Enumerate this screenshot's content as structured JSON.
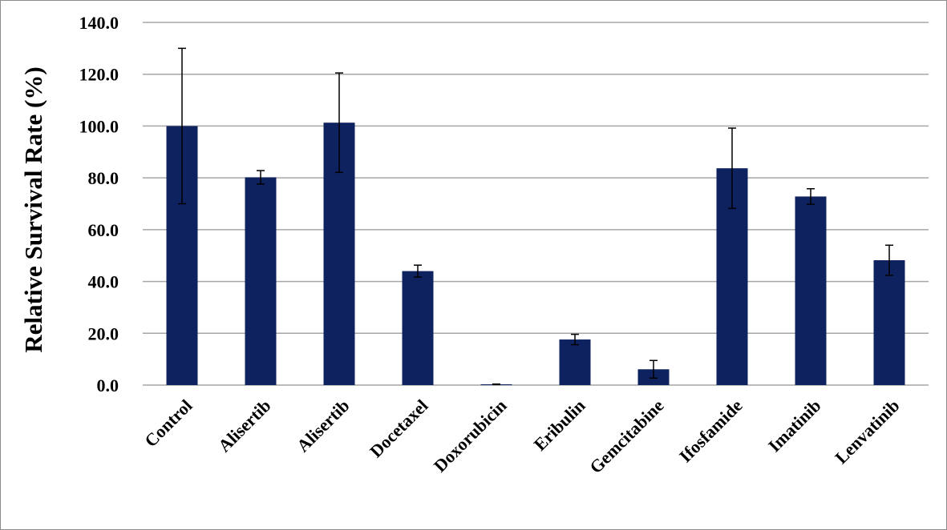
{
  "chart_data": {
    "type": "bar",
    "title": "",
    "xlabel": "",
    "ylabel": "Relative Survival Rate (%)",
    "ylim": [
      0,
      140
    ],
    "yticks": [
      0,
      20,
      40,
      60,
      80,
      100,
      120,
      140
    ],
    "ytick_labels": [
      "0.0",
      "20.0",
      "40.0",
      "60.0",
      "80.0",
      "100.0",
      "120.0",
      "140.0"
    ],
    "grid": "horizontal",
    "legend": "none",
    "categories": [
      "Control",
      "Alisertib",
      "Alisertib",
      "Docetaxel",
      "Doxorubicin",
      "Eribulin",
      "Gemcitabine",
      "Ifosfamide",
      "Imatinib",
      "Lenvatinib"
    ],
    "values": [
      100.0,
      80.2,
      101.3,
      44.0,
      0.3,
      17.6,
      6.1,
      83.7,
      72.8,
      48.2
    ],
    "errors": [
      30.0,
      2.6,
      19.2,
      2.3,
      0.1,
      2.0,
      3.4,
      15.5,
      3.0,
      5.8
    ],
    "bar_color": "#0e2260",
    "error_color": "#000000",
    "grid_color": "#a6a6a6"
  }
}
